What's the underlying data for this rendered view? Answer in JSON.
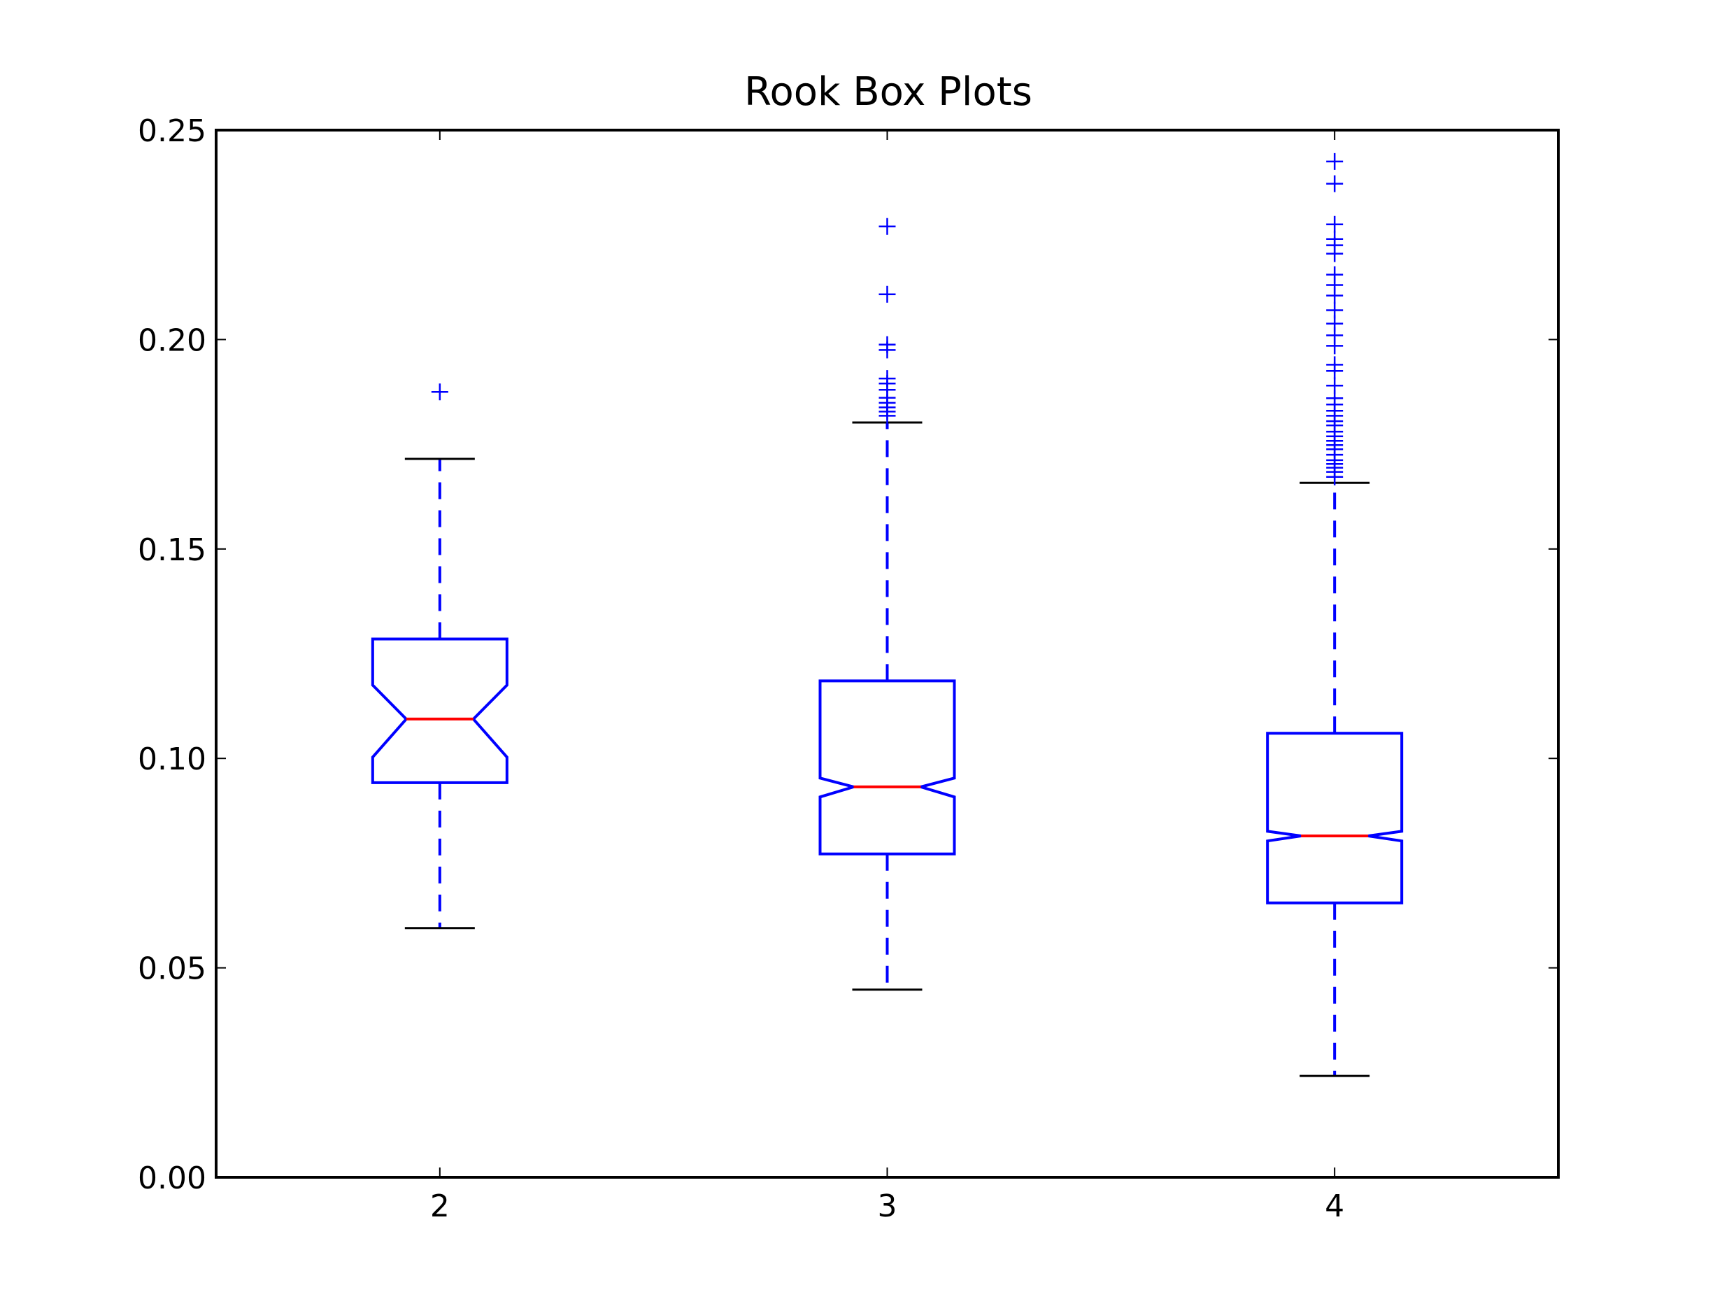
{
  "chart_data": {
    "type": "box",
    "title": "Rook Box Plots",
    "xlabel": "",
    "ylabel": "",
    "notched": true,
    "categories": [
      "2",
      "3",
      "4"
    ],
    "ylim": [
      0.0,
      0.25
    ],
    "yticks": [
      "0.00",
      "0.05",
      "0.10",
      "0.15",
      "0.20",
      "0.25"
    ],
    "xlim": [
      1.5,
      4.5
    ],
    "grid": false,
    "colors": {
      "box": "#0000ff",
      "median": "#ff0000",
      "caps": "#000000",
      "whiskers": "#0000ff",
      "fliers": "#0000ff"
    },
    "boxes": [
      {
        "category": "2",
        "whisker_low": 0.0595,
        "q1": 0.0942,
        "notch_low": 0.1003,
        "median": 0.1094,
        "notch_high": 0.1175,
        "q3": 0.1285,
        "whisker_high": 0.1715,
        "outliers": [
          0.1875
        ]
      },
      {
        "category": "3",
        "whisker_low": 0.0448,
        "q1": 0.0772,
        "notch_low": 0.0908,
        "median": 0.0932,
        "notch_high": 0.0953,
        "q3": 0.1185,
        "whisker_high": 0.1802,
        "outliers": [
          0.1818,
          0.1828,
          0.1838,
          0.1849,
          0.1861,
          0.188,
          0.1895,
          0.1907,
          0.1975,
          0.1988,
          0.2108,
          0.227
        ]
      },
      {
        "category": "4",
        "whisker_low": 0.0242,
        "q1": 0.0655,
        "notch_low": 0.0803,
        "median": 0.0815,
        "notch_high": 0.0826,
        "q3": 0.106,
        "whisker_high": 0.1658,
        "outliers": [
          0.1672,
          0.1684,
          0.1694,
          0.1703,
          0.1712,
          0.1725,
          0.1738,
          0.1748,
          0.1758,
          0.1769,
          0.178,
          0.1795,
          0.1805,
          0.1818,
          0.183,
          0.1845,
          0.186,
          0.189,
          0.1925,
          0.194,
          0.1985,
          0.201,
          0.2038,
          0.207,
          0.2105,
          0.213,
          0.2155,
          0.2205,
          0.2225,
          0.224,
          0.2275,
          0.2372,
          0.2425
        ]
      }
    ]
  }
}
